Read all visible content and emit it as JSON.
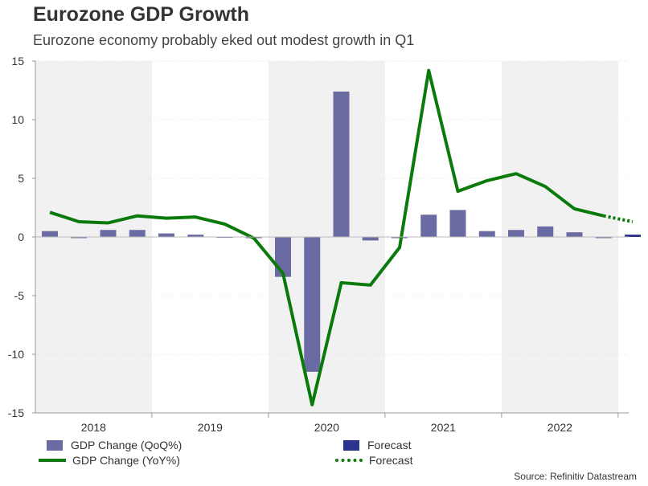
{
  "header": {
    "title": "Eurozone GDP Growth",
    "subtitle": "Eurozone economy probably eked out modest growth in Q1"
  },
  "legend": {
    "qoq_label": "GDP Change (QoQ%)",
    "yoy_label": "GDP Change (YoY%)",
    "forecast_bar_label": "Forecast",
    "forecast_line_label": "Forecast"
  },
  "source": "Source: Refinitiv Datastream",
  "colors": {
    "qoq_bar": "#6b6ba3",
    "forecast_bar": "#2c3490",
    "yoy_line": "#0a7a0a",
    "band": "#f1f1f1",
    "axis": "#999999"
  },
  "chart_data": {
    "type": "bar",
    "title": "Eurozone GDP Growth",
    "subtitle": "Eurozone economy probably eked out modest growth in Q1",
    "ylim": [
      -15,
      15
    ],
    "yticks": [
      -15,
      -10,
      -5,
      0,
      5,
      10,
      15
    ],
    "year_labels": [
      "2018",
      "2019",
      "2020",
      "2021",
      "2022"
    ],
    "year_bands": [
      {
        "year": "2018",
        "shaded": true
      },
      {
        "year": "2019",
        "shaded": false
      },
      {
        "year": "2020",
        "shaded": true
      },
      {
        "year": "2021",
        "shaded": false
      },
      {
        "year": "2022",
        "shaded": true
      },
      {
        "year": "2023",
        "shaded": false
      }
    ],
    "quarters": [
      "2018Q1",
      "2018Q2",
      "2018Q3",
      "2018Q4",
      "2019Q1",
      "2019Q2",
      "2019Q3",
      "2019Q4",
      "2020Q1",
      "2020Q2",
      "2020Q3",
      "2020Q4",
      "2021Q1",
      "2021Q2",
      "2021Q3",
      "2021Q4",
      "2022Q1",
      "2022Q2",
      "2022Q3",
      "2022Q4",
      "2023Q1"
    ],
    "series": [
      {
        "name": "GDP Change (QoQ%)",
        "type": "bar",
        "values": [
          0.5,
          -0.1,
          0.6,
          0.6,
          0.3,
          0.2,
          0.0,
          -0.1,
          -3.4,
          -11.5,
          12.4,
          -0.3,
          -0.1,
          1.9,
          2.3,
          0.5,
          0.6,
          0.9,
          0.4,
          -0.1,
          0.2
        ],
        "forecast_from_index": 20
      },
      {
        "name": "GDP Change (YoY%)",
        "type": "line",
        "values": [
          2.1,
          1.3,
          1.2,
          1.8,
          1.6,
          1.7,
          1.1,
          -0.1,
          -3.1,
          -14.3,
          -3.9,
          -4.1,
          -0.9,
          14.2,
          3.9,
          4.8,
          5.4,
          4.3,
          2.4,
          1.8,
          1.3
        ],
        "forecast_from_index": 19
      }
    ],
    "legend_position": "bottom",
    "source": "Source: Refinitiv Datastream"
  }
}
